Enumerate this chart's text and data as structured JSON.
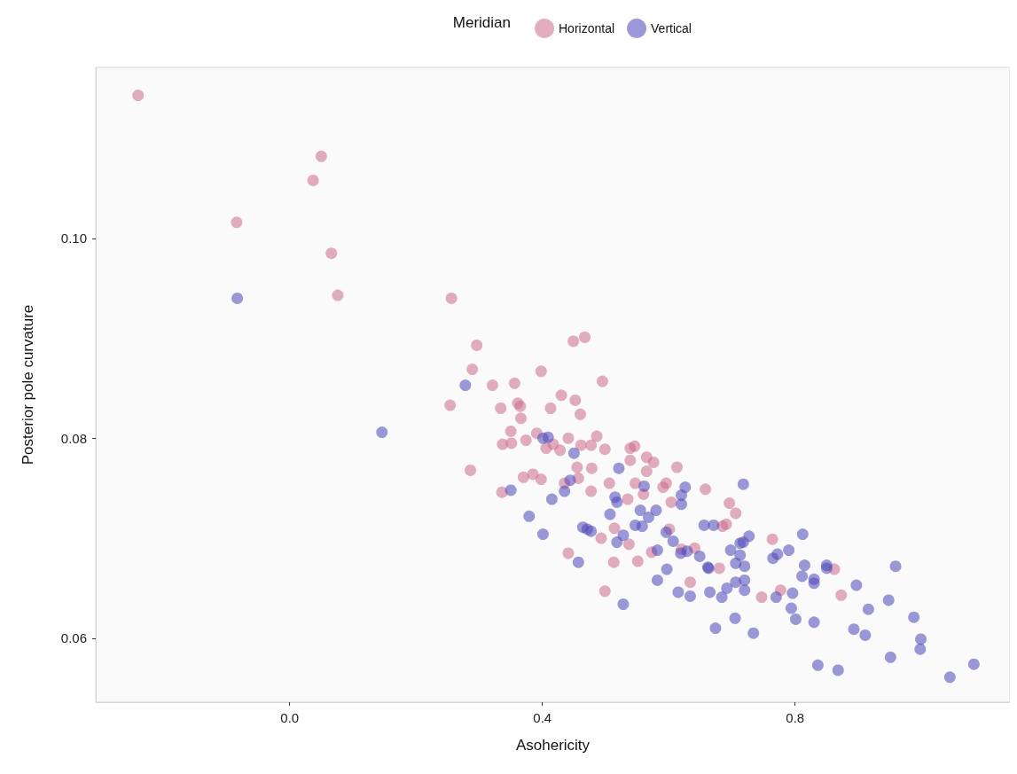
{
  "chart_data": {
    "type": "scatter",
    "xlabel": "Asohericity",
    "ylabel": "Posterior pole curvature",
    "legend_title": "Meridian",
    "legend": "top",
    "grid": false,
    "marker": "circle",
    "xlim": [
      -0.307,
      1.14
    ],
    "ylim": [
      0.0536,
      0.1171
    ],
    "xticks": [
      {
        "value": 0,
        "label": "0.0"
      },
      0.4,
      0.8
    ],
    "yticks": [
      {
        "value": 0.06,
        "label": "0.06"
      },
      {
        "value": 0.08,
        "label": "0.08"
      },
      {
        "value": 0.1,
        "label": "0.10"
      }
    ],
    "series": [
      {
        "name": "Horizontal",
        "color": "#cc6a8c",
        "x": [
          -0.24,
          0.05,
          0.037,
          -0.084,
          0.066,
          0.076,
          0.256,
          0.296,
          0.289,
          0.254,
          0.321,
          0.356,
          0.334,
          0.361,
          0.365,
          0.366,
          0.398,
          0.43,
          0.452,
          0.413,
          0.46,
          0.449,
          0.467,
          0.495,
          0.35,
          0.337,
          0.351,
          0.374,
          0.391,
          0.406,
          0.417,
          0.428,
          0.441,
          0.461,
          0.477,
          0.486,
          0.499,
          0.286,
          0.336,
          0.37,
          0.385,
          0.398,
          0.435,
          0.455,
          0.457,
          0.478,
          0.477,
          0.506,
          0.539,
          0.546,
          0.539,
          0.565,
          0.576,
          0.565,
          0.613,
          0.547,
          0.56,
          0.591,
          0.596,
          0.535,
          0.604,
          0.658,
          0.514,
          0.493,
          0.537,
          0.601,
          0.573,
          0.62,
          0.641,
          0.441,
          0.513,
          0.551,
          0.634,
          0.499,
          0.696,
          0.706,
          0.691,
          0.685,
          0.764,
          0.68,
          0.747,
          0.777,
          0.862,
          0.873
        ],
        "values": [
          0.1143,
          0.1082,
          0.1058,
          0.1016,
          0.0985,
          0.0943,
          0.094,
          0.0893,
          0.0869,
          0.0833,
          0.0853,
          0.0855,
          0.083,
          0.0835,
          0.0832,
          0.082,
          0.0867,
          0.0843,
          0.0838,
          0.083,
          0.0824,
          0.0897,
          0.0901,
          0.0857,
          0.0807,
          0.0794,
          0.0795,
          0.0798,
          0.0805,
          0.079,
          0.0794,
          0.0788,
          0.08,
          0.0793,
          0.0793,
          0.0802,
          0.0789,
          0.0768,
          0.0746,
          0.0761,
          0.0764,
          0.0759,
          0.0755,
          0.0771,
          0.076,
          0.077,
          0.0747,
          0.0755,
          0.079,
          0.0792,
          0.0778,
          0.0781,
          0.0776,
          0.0767,
          0.0771,
          0.0755,
          0.0744,
          0.0751,
          0.0755,
          0.0739,
          0.0736,
          0.0749,
          0.071,
          0.07,
          0.0694,
          0.0709,
          0.0686,
          0.0689,
          0.069,
          0.0685,
          0.0676,
          0.0677,
          0.0656,
          0.0647,
          0.0735,
          0.0725,
          0.0714,
          0.0712,
          0.0699,
          0.067,
          0.0641,
          0.0648,
          0.0669,
          0.0643
        ]
      },
      {
        "name": "Vertical",
        "color": "#4a45b8",
        "x": [
          -0.083,
          0.278,
          0.146,
          0.401,
          0.409,
          0.45,
          0.444,
          0.435,
          0.35,
          0.415,
          0.521,
          0.561,
          0.515,
          0.518,
          0.626,
          0.62,
          0.62,
          0.379,
          0.401,
          0.507,
          0.555,
          0.58,
          0.568,
          0.547,
          0.558,
          0.464,
          0.471,
          0.477,
          0.528,
          0.518,
          0.596,
          0.607,
          0.582,
          0.619,
          0.629,
          0.649,
          0.656,
          0.671,
          0.663,
          0.457,
          0.597,
          0.582,
          0.718,
          0.812,
          0.79,
          0.772,
          0.765,
          0.815,
          0.811,
          0.83,
          0.83,
          0.528,
          0.615,
          0.634,
          0.665,
          0.684,
          0.692,
          0.706,
          0.72,
          0.72,
          0.674,
          0.705,
          0.734,
          0.77,
          0.796,
          0.794,
          0.801,
          0.83,
          0.836,
          0.662,
          0.698,
          0.713,
          0.706,
          0.72,
          0.713,
          0.727,
          0.718,
          0.85,
          0.85,
          0.897,
          0.959,
          0.948,
          0.916,
          0.988,
          0.999,
          0.998,
          0.951,
          1.083,
          1.045,
          0.868,
          0.893,
          0.911
        ],
        "values": [
          0.094,
          0.0853,
          0.0806,
          0.08,
          0.0801,
          0.0785,
          0.0758,
          0.0747,
          0.0748,
          0.0739,
          0.077,
          0.0752,
          0.0741,
          0.0736,
          0.0751,
          0.0743,
          0.0734,
          0.0722,
          0.0704,
          0.0724,
          0.0728,
          0.0728,
          0.0721,
          0.0713,
          0.0712,
          0.0711,
          0.0709,
          0.0707,
          0.0703,
          0.0696,
          0.0706,
          0.0697,
          0.0688,
          0.0685,
          0.0687,
          0.0682,
          0.0713,
          0.0713,
          0.067,
          0.0676,
          0.0669,
          0.0658,
          0.0754,
          0.0704,
          0.0688,
          0.0684,
          0.068,
          0.0673,
          0.0662,
          0.0659,
          0.0655,
          0.0634,
          0.0646,
          0.0642,
          0.0646,
          0.0641,
          0.065,
          0.0656,
          0.0658,
          0.0648,
          0.061,
          0.062,
          0.0605,
          0.0641,
          0.0645,
          0.063,
          0.0619,
          0.0616,
          0.0573,
          0.0671,
          0.0688,
          0.0683,
          0.0675,
          0.0672,
          0.0695,
          0.0702,
          0.0696,
          0.0673,
          0.067,
          0.0653,
          0.0672,
          0.0638,
          0.0629,
          0.0621,
          0.0599,
          0.0589,
          0.0581,
          0.0574,
          0.0561,
          0.0568,
          0.0609,
          0.0603
        ]
      }
    ]
  }
}
